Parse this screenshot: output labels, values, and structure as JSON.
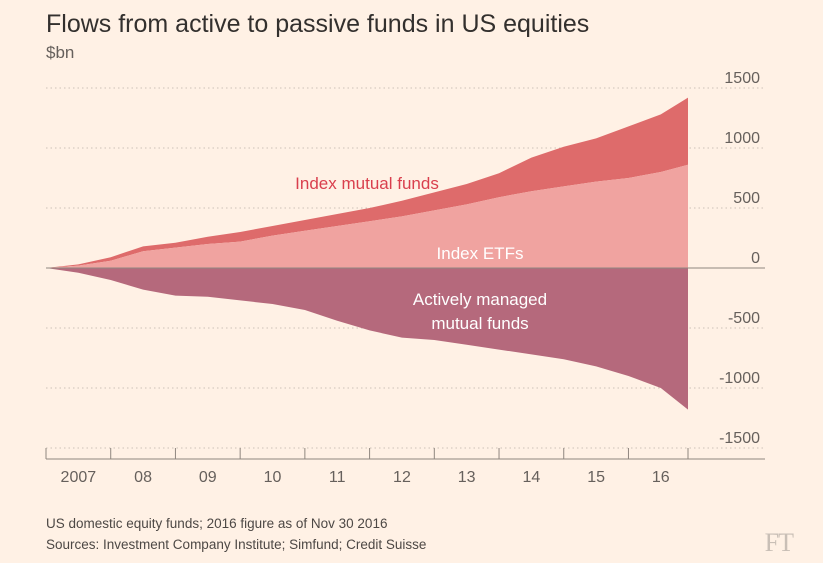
{
  "title": "Flows from active to passive funds in US equities",
  "subtitle": "$bn",
  "notes": {
    "line1": "US domestic equity funds; 2016 figure as of Nov 30 2016",
    "line2": "Sources: Investment Company Institute; Simfund; Credit Suisse"
  },
  "logo": "FT",
  "colors": {
    "background": "#fff1e5",
    "index_mutual_funds": "#de6b6b",
    "index_etfs": "#f0a3a0",
    "active": "#b5697c",
    "active_label": "#ffffff",
    "index_mutual_label": "#d93f4d"
  },
  "chart_data": {
    "type": "area",
    "ylim": [
      -1500,
      1500
    ],
    "yticks": [
      1500,
      1000,
      500,
      0,
      -500,
      -1000,
      -1500
    ],
    "xlim": [
      2007.0,
      2016.92
    ],
    "xticks": [
      {
        "label": "2007",
        "x": 2007.5
      },
      {
        "label": "08",
        "x": 2008.5
      },
      {
        "label": "09",
        "x": 2009.5
      },
      {
        "label": "10",
        "x": 2010.5
      },
      {
        "label": "11",
        "x": 2011.5
      },
      {
        "label": "12",
        "x": 2012.5
      },
      {
        "label": "13",
        "x": 2013.5
      },
      {
        "label": "14",
        "x": 2014.5
      },
      {
        "label": "15",
        "x": 2015.5
      },
      {
        "label": "16",
        "x": 2016.5
      }
    ],
    "year_boundaries": [
      2007,
      2008,
      2009,
      2010,
      2011,
      2012,
      2013,
      2014,
      2015,
      2016
    ],
    "grid": true,
    "series": [
      {
        "name": "Index ETFs",
        "stack": "positive",
        "x": [
          2007.0,
          2007.5,
          2008.0,
          2008.5,
          2009.0,
          2009.5,
          2010.0,
          2010.5,
          2011.0,
          2011.5,
          2012.0,
          2012.5,
          2013.0,
          2013.5,
          2014.0,
          2014.5,
          2015.0,
          2015.5,
          2016.0,
          2016.5,
          2016.92
        ],
        "values": [
          0,
          20,
          60,
          140,
          170,
          200,
          220,
          270,
          310,
          350,
          390,
          430,
          480,
          530,
          590,
          640,
          680,
          720,
          750,
          800,
          860
        ]
      },
      {
        "name": "Index mutual funds",
        "stack": "positive",
        "x": [
          2007.0,
          2007.5,
          2008.0,
          2008.5,
          2009.0,
          2009.5,
          2010.0,
          2010.5,
          2011.0,
          2011.5,
          2012.0,
          2012.5,
          2013.0,
          2013.5,
          2014.0,
          2014.5,
          2015.0,
          2015.5,
          2016.0,
          2016.5,
          2016.92
        ],
        "values": [
          0,
          10,
          30,
          40,
          40,
          60,
          80,
          80,
          90,
          100,
          110,
          130,
          150,
          170,
          200,
          280,
          330,
          360,
          430,
          480,
          560
        ]
      },
      {
        "name": "Actively managed mutual funds",
        "stack": "negative",
        "x": [
          2007.0,
          2007.5,
          2008.0,
          2008.5,
          2009.0,
          2009.5,
          2010.0,
          2010.5,
          2011.0,
          2011.5,
          2012.0,
          2012.5,
          2013.0,
          2013.5,
          2014.0,
          2014.5,
          2015.0,
          2015.5,
          2016.0,
          2016.5,
          2016.92
        ],
        "values": [
          0,
          -40,
          -100,
          -180,
          -230,
          -240,
          -270,
          -300,
          -350,
          -440,
          -520,
          -580,
          -600,
          -640,
          -680,
          -720,
          -760,
          -820,
          -900,
          -1000,
          -1180
        ]
      }
    ],
    "annotations": [
      {
        "text": "Index mutual funds",
        "series": "Index mutual funds"
      },
      {
        "text": "Index ETFs",
        "series": "Index ETFs"
      },
      {
        "text": "Actively managed",
        "series": "Actively managed mutual funds"
      },
      {
        "text": "mutual funds",
        "series": "Actively managed mutual funds"
      }
    ]
  }
}
